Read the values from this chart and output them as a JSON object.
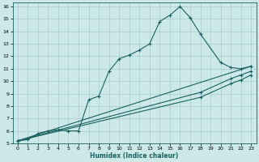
{
  "xlabel": "Humidex (Indice chaleur)",
  "bg_color": "#cce8e8",
  "grid_color": "#aacccc",
  "line_color": "#1a6060",
  "xlim": [
    -0.5,
    23.5
  ],
  "ylim": [
    5,
    16.3
  ],
  "xticks": [
    0,
    1,
    2,
    3,
    4,
    5,
    6,
    7,
    8,
    9,
    10,
    11,
    12,
    13,
    14,
    15,
    16,
    17,
    18,
    19,
    20,
    21,
    22,
    23
  ],
  "yticks": [
    5,
    6,
    7,
    8,
    9,
    10,
    11,
    12,
    13,
    14,
    15,
    16
  ],
  "curve_x": [
    0,
    1,
    2,
    3,
    4,
    5,
    6,
    7,
    8,
    9,
    10,
    11,
    12,
    13,
    14,
    15,
    16,
    17,
    18,
    20,
    21,
    22,
    23
  ],
  "curve_y": [
    5.2,
    5.3,
    5.8,
    6.0,
    6.1,
    6.0,
    6.0,
    8.5,
    8.8,
    10.8,
    11.8,
    12.1,
    12.5,
    13.0,
    14.8,
    15.3,
    16.0,
    15.1,
    13.8,
    11.5,
    11.1,
    11.0,
    11.2
  ],
  "line1_x": [
    0,
    23
  ],
  "line1_y": [
    5.2,
    11.2
  ],
  "line2_x": [
    0,
    18,
    21,
    22,
    23
  ],
  "line2_y": [
    5.2,
    9.1,
    10.2,
    10.5,
    10.8
  ],
  "line3_x": [
    0,
    18,
    21,
    22,
    23
  ],
  "line3_y": [
    5.2,
    8.7,
    9.8,
    10.1,
    10.5
  ]
}
